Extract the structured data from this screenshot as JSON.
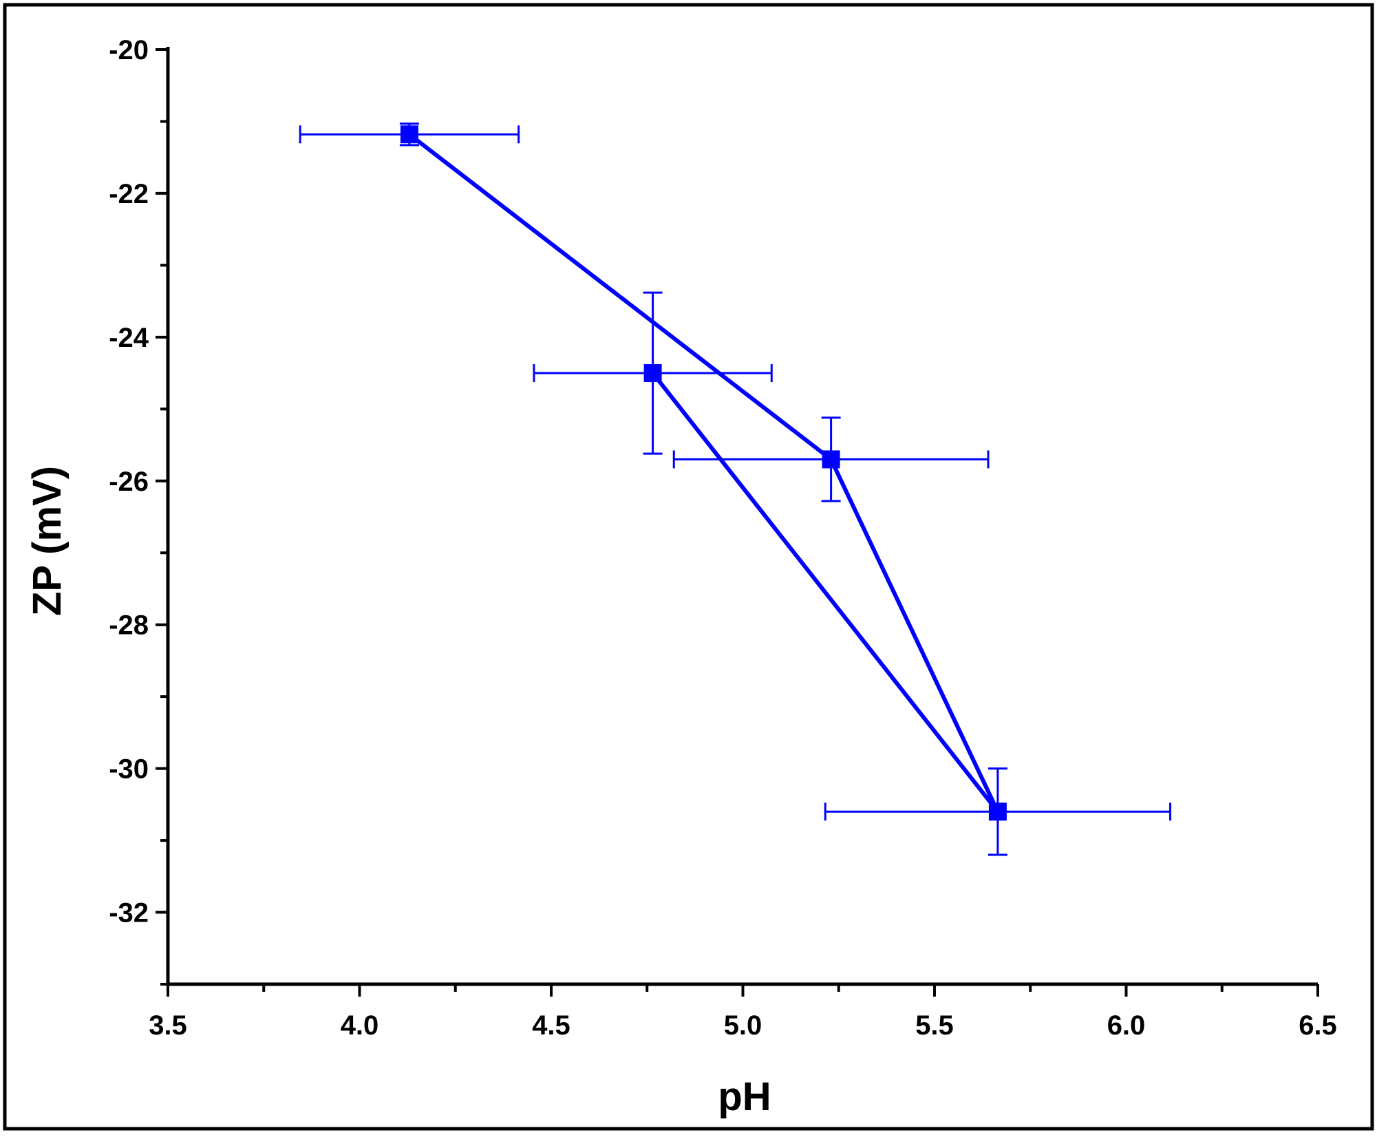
{
  "chart_data": {
    "type": "line",
    "title": "",
    "xlabel": "pH",
    "ylabel": "ZP (mV)",
    "xlim": [
      3.5,
      6.5
    ],
    "ylim": [
      -33,
      -20
    ],
    "x_ticks": [
      "3.5",
      "4.0",
      "4.5",
      "5.0",
      "5.5",
      "6.0",
      "6.5"
    ],
    "y_ticks": [
      "-20",
      "-22",
      "-24",
      "-26",
      "-28",
      "-30",
      "-32"
    ],
    "grid": false,
    "legend": "none",
    "markers": "filled-square",
    "series": [
      {
        "color": "#0000ff",
        "points": [
          {
            "x": 4.13,
            "y": -21.18,
            "x_err": 0.285,
            "y_err": 0.15
          },
          {
            "x": 5.23,
            "y": -25.7,
            "x_err": 0.41,
            "y_err": 0.58
          },
          {
            "x": 5.665,
            "y": -30.6,
            "x_err": 0.45,
            "y_err": 0.6
          },
          {
            "x": 4.765,
            "y": -24.5,
            "x_err": 0.31,
            "y_err": 1.12
          }
        ]
      }
    ]
  }
}
